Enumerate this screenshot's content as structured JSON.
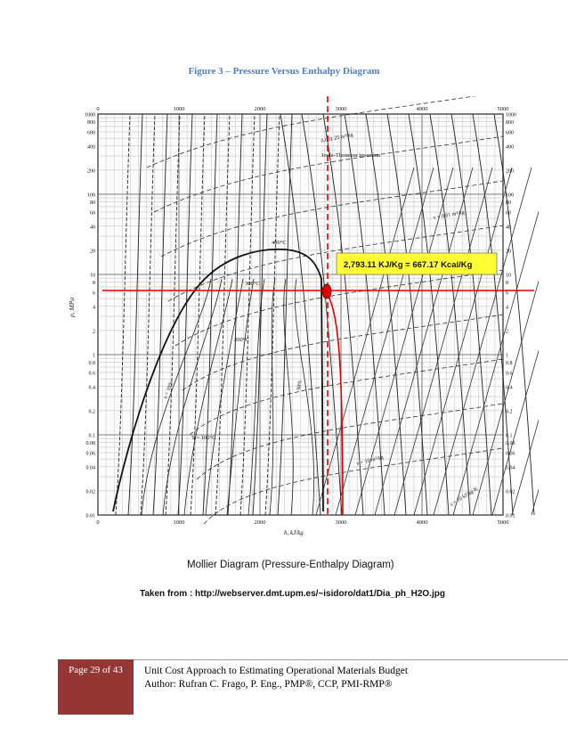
{
  "document": {
    "figure_caption": "Figure 3 – Pressure Versus Enthalpy Diagram",
    "footer": {
      "page_label": "Page 29 of 43",
      "title_line": "Unit Cost Approach to Estimating Operational Materials Budget",
      "author_line": "Author: Rufran C. Frago, P. Eng., PMP®, CCP, PMI-RMP®"
    }
  },
  "diagram": {
    "x_axis_label": "h, kJ/kg",
    "y_axis_label": "p, MPa",
    "x_ticks": [
      "0",
      "1000",
      "2000",
      "3000",
      "4000",
      "5000"
    ],
    "y_ticks_left": [
      "1000",
      "800",
      "600",
      "400",
      "200",
      "100",
      "80",
      "60",
      "40",
      "20",
      "10",
      "8",
      "6",
      "4",
      "2",
      "1",
      "0.8",
      "0.6",
      "0.4",
      "0.2",
      "0.1",
      "0.08",
      "0.06",
      "0.04",
      "0.02",
      "0.01"
    ],
    "curve_labels": {
      "critical_temp": "400°C",
      "temp_300": "300°C",
      "temp_200": "200°C",
      "temp_100": "T = 100°C",
      "joule_thomson": "Joule-Thomson inversion",
      "volume_small": "0.001 25 m³/kg",
      "volume_mid": "v = 0.01 m³/kg",
      "volume_large": "v = 10 m³/kg",
      "entropy": "s = 10 kJ/kg·K",
      "quality_10": "x = 10%",
      "quality_90": "90%"
    },
    "annotation_value": "2,793.11 KJ/Kg = 667.17 Kcal/Kg",
    "chart_title": "Mollier Diagram (Pressure-Enthalpy Diagram)",
    "source_line": "Taken from :  http://webserver.dmt.upm.es/~isidoro/dat1/Dia_ph_H2O.jpg",
    "marker": {
      "enthalpy_kj_per_kg": 2793.11,
      "pressure_mpa": 7
    },
    "colors": {
      "highlight": "#ffff33",
      "marker": "#e00000",
      "ink": "#111111"
    }
  }
}
